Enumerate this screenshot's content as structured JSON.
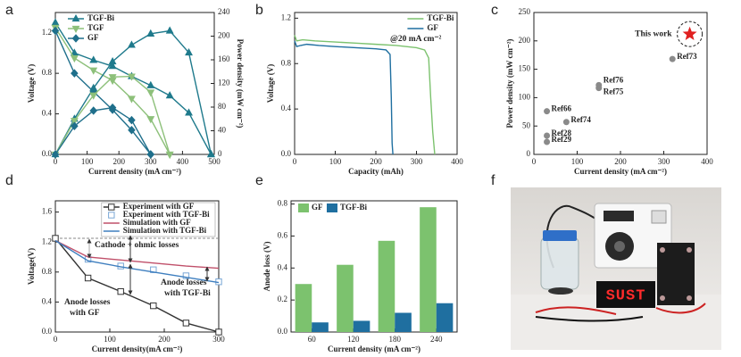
{
  "panel_labels": [
    "a",
    "b",
    "c",
    "d",
    "e",
    "f"
  ],
  "photo": {
    "display_text": "SUST"
  },
  "chart_data": [
    {
      "type": "line",
      "xlabel": "Current density (mA cm⁻²)",
      "ylabel": "Voltage (V)",
      "y2label": "Power density (mW cm⁻²)",
      "xlim": [
        0,
        500
      ],
      "xticks": [
        0,
        100,
        200,
        300,
        400,
        500
      ],
      "ylim": [
        0,
        1.4
      ],
      "yticks": [
        {
          "value": 0,
          "label": "0.0"
        },
        0.4,
        0.8,
        1.2
      ],
      "y2lim": [
        0,
        240
      ],
      "y2ticks": [
        0,
        40,
        80,
        120,
        160,
        200,
        240
      ],
      "legend": "upper left",
      "series": [
        {
          "name": "TGF-Bi",
          "color": "#1f7a8c",
          "marker": "triangle-up",
          "x": [
            0,
            60,
            120,
            180,
            240,
            300,
            360,
            420,
            490
          ],
          "values": [
            1.3,
            1.0,
            0.93,
            0.87,
            0.77,
            0.68,
            0.58,
            0.41,
            0
          ]
        },
        {
          "name": "TGF",
          "color": "#8dc07a",
          "marker": "triangle-down",
          "x": [
            0,
            60,
            120,
            180,
            240,
            300,
            360
          ],
          "values": [
            1.25,
            0.95,
            0.83,
            0.73,
            0.55,
            0.35,
            0
          ]
        },
        {
          "name": "GF",
          "color": "#1f6f8b",
          "marker": "diamond",
          "x": [
            0,
            60,
            120,
            180,
            240,
            300
          ],
          "values": [
            1.22,
            0.8,
            0.62,
            0.44,
            0.24,
            0
          ]
        },
        {
          "color": "#1f7a8c",
          "marker": "triangle-up",
          "axis": "y2",
          "x": [
            0,
            60,
            120,
            180,
            240,
            300,
            360,
            420,
            490
          ],
          "values": [
            0,
            60,
            112,
            157,
            185,
            204,
            209,
            172,
            0
          ]
        },
        {
          "color": "#8dc07a",
          "marker": "triangle-down",
          "axis": "y2",
          "x": [
            0,
            60,
            120,
            180,
            240,
            300,
            360
          ],
          "values": [
            0,
            57,
            100,
            131,
            132,
            105,
            0
          ]
        },
        {
          "color": "#1f6f8b",
          "marker": "diamond",
          "axis": "y2",
          "x": [
            0,
            60,
            120,
            180,
            240,
            300
          ],
          "values": [
            0,
            48,
            74,
            79,
            58,
            0
          ]
        }
      ]
    },
    {
      "type": "line",
      "xlabel": "Capacity (mAh)",
      "ylabel": "Voltage (V)",
      "xlim": [
        0,
        400
      ],
      "xticks": [
        0,
        100,
        200,
        300,
        400
      ],
      "ylim": [
        0,
        1.25
      ],
      "yticks": [
        {
          "value": 0,
          "label": "0.0"
        },
        0.4,
        0.8,
        1.2
      ],
      "legend": "upper right",
      "annotations": [
        "@20 mA cm⁻²"
      ],
      "series": [
        {
          "name": "TGF-Bi",
          "color": "#7cc26e",
          "x": [
            0,
            5,
            20,
            50,
            100,
            150,
            200,
            250,
            300,
            320,
            330,
            335,
            340,
            345
          ],
          "values": [
            1.05,
            1.0,
            1.01,
            1.0,
            0.99,
            0.98,
            0.97,
            0.96,
            0.94,
            0.92,
            0.85,
            0.5,
            0.2,
            0
          ]
        },
        {
          "name": "GF",
          "color": "#1f6fa0",
          "x": [
            0,
            5,
            15,
            30,
            60,
            100,
            150,
            200,
            225,
            235,
            238,
            240,
            242
          ],
          "values": [
            1.0,
            0.95,
            0.96,
            0.97,
            0.96,
            0.95,
            0.94,
            0.93,
            0.92,
            0.88,
            0.5,
            0.1,
            0
          ]
        }
      ]
    },
    {
      "type": "scatter",
      "xlabel": "Current density (mA cm⁻²)",
      "ylabel": "Power density (mW cm⁻²)",
      "xlim": [
        0,
        400
      ],
      "xticks": [
        0,
        100,
        200,
        300,
        400
      ],
      "ylim": [
        0,
        250
      ],
      "yticks": [
        0,
        50,
        100,
        150,
        200,
        250
      ],
      "series": [
        {
          "color": "#8a8a8a",
          "marker": "circle",
          "x": [
            320,
            150,
            150,
            30,
            75,
            30,
            30
          ],
          "values": [
            168,
            122,
            117,
            76,
            57,
            33,
            22
          ],
          "point_labels": [
            "Ref73",
            "Ref76",
            "Ref75",
            "Ref66",
            "Ref74",
            "Ref28",
            "Ref29"
          ]
        },
        {
          "name": "This work",
          "color": "#e02020",
          "marker": "star",
          "x": [
            360
          ],
          "values": [
            212
          ]
        }
      ]
    },
    {
      "type": "line",
      "xlabel": "Current density(mA cm⁻²)",
      "ylabel": "Voltage(V)",
      "xlim": [
        0,
        300
      ],
      "xticks": [
        0,
        100,
        200,
        300
      ],
      "ylim": [
        0,
        1.75
      ],
      "yticks": [
        {
          "value": 0,
          "label": "0.0"
        },
        0.4,
        0.8,
        1.2,
        1.6
      ],
      "hline": 1.25,
      "legend": "upper right",
      "legend_frame": true,
      "annotations": [
        "Cathode + ohmic losses",
        "Anode losses",
        "with TGF-Bi",
        "Anode losses",
        "with GF"
      ],
      "series": [
        {
          "name": "Experiment with GF",
          "color": "#333333",
          "marker": "square",
          "marker_fill": "none",
          "x": [
            0,
            60,
            120,
            180,
            240,
            300
          ],
          "values": [
            1.25,
            0.72,
            0.54,
            0.35,
            0.12,
            0
          ]
        },
        {
          "name": "Experiment with TGF-Bi",
          "color": "#7aa7d6",
          "marker": "square",
          "marker_fill": "none",
          "line": false,
          "x": [
            60,
            120,
            180,
            240,
            300
          ],
          "values": [
            0.97,
            0.88,
            0.83,
            0.75,
            0.67
          ]
        },
        {
          "name": "Simulation with GF",
          "color": "#c0506a",
          "x": [
            0,
            60,
            120,
            180,
            240,
            300
          ],
          "values": [
            1.22,
            1.0,
            0.96,
            0.92,
            0.88,
            0.85
          ]
        },
        {
          "name": "Simulation with TGF-Bi",
          "color": "#3f7fbf",
          "x": [
            0,
            60,
            120,
            180,
            240,
            300
          ],
          "values": [
            1.22,
            0.95,
            0.87,
            0.8,
            0.73,
            0.66
          ]
        }
      ]
    },
    {
      "type": "bar",
      "xlabel": "Current density (mA cm⁻²)",
      "ylabel": "Anode loss (V)",
      "categories": [
        "60",
        "120",
        "180",
        "240"
      ],
      "ylim": [
        0,
        0.82
      ],
      "yticks": [
        {
          "value": 0,
          "label": "0.0"
        },
        0.2,
        0.4,
        0.6,
        0.8
      ],
      "legend": "upper left",
      "series": [
        {
          "name": "GF",
          "color": "#7cc26e",
          "values": [
            0.3,
            0.42,
            0.57,
            0.78
          ]
        },
        {
          "name": "TGF-Bi",
          "color": "#1f6fa0",
          "values": [
            0.06,
            0.07,
            0.12,
            0.18
          ]
        }
      ]
    }
  ]
}
